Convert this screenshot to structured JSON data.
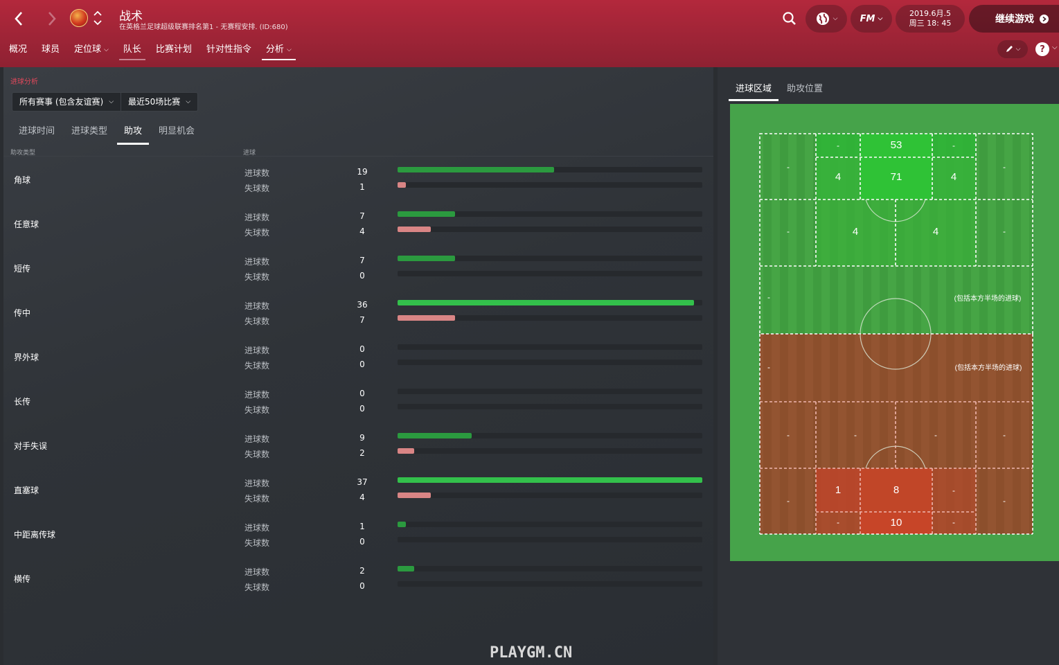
{
  "header": {
    "title": "战术",
    "subtitle": "在英格兰足球超级联赛排名第1 - 无赛程安排. (ID:680)",
    "date_line1": "2019.6月.5",
    "date_line2": "周三 18: 45",
    "continue_label": "继续游戏",
    "fm_label": "FM"
  },
  "subnav": [
    {
      "label": "概况",
      "chevron": false
    },
    {
      "label": "球员",
      "chevron": false
    },
    {
      "label": "定位球",
      "chevron": true
    },
    {
      "label": "队长",
      "chevron": false
    },
    {
      "label": "比赛计划",
      "chevron": false
    },
    {
      "label": "针对性指令",
      "chevron": false
    },
    {
      "label": "分析",
      "chevron": true
    }
  ],
  "left": {
    "section_label": "进球分析",
    "filter1": "所有赛事 (包含友谊赛)",
    "filter2": "最近50场比赛",
    "tabs": [
      "进球时间",
      "进球类型",
      "助攻",
      "明显机会"
    ],
    "col_type": "助攻类型",
    "col_goals": "进球",
    "for_label": "进球数",
    "against_label": "失球数",
    "max_value": 37,
    "rows": [
      {
        "name": "角球",
        "for": 19,
        "against": 1
      },
      {
        "name": "任意球",
        "for": 7,
        "against": 4
      },
      {
        "name": "短传",
        "for": 7,
        "against": 0
      },
      {
        "name": "传中",
        "for": 36,
        "against": 7
      },
      {
        "name": "界外球",
        "for": 0,
        "against": 0
      },
      {
        "name": "长传",
        "for": 0,
        "against": 0
      },
      {
        "name": "对手失误",
        "for": 9,
        "against": 2
      },
      {
        "name": "直塞球",
        "for": 37,
        "against": 4
      },
      {
        "name": "中距离传球",
        "for": 1,
        "against": 0
      },
      {
        "name": "横传",
        "for": 2,
        "against": 0
      }
    ]
  },
  "right": {
    "tabs": [
      "进球区域",
      "助攻位置"
    ],
    "own_half_note": "(包括本方半场的进球)",
    "attack": {
      "six_yard": [
        "-",
        "53",
        "-"
      ],
      "box_row": [
        "-",
        "4",
        "71",
        "4",
        "-"
      ],
      "edge_row": [
        "-",
        "4",
        "4",
        "-"
      ],
      "midfield": "-"
    },
    "defence": {
      "midfield": "-",
      "edge_row": [
        "-",
        "-",
        "-",
        "-"
      ],
      "box_row": [
        "-",
        "1",
        "8",
        "-",
        "-"
      ],
      "six_yard": [
        "-",
        "10",
        "-"
      ]
    }
  },
  "watermark": "PLAYGM.CN"
}
